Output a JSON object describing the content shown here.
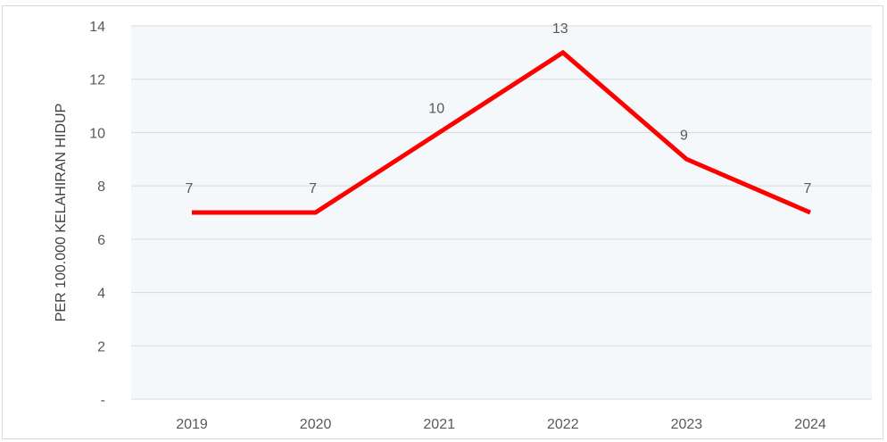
{
  "chart_data": {
    "type": "line",
    "title": "",
    "xlabel": "",
    "ylabel": "PER 100.000 KELAHIRAN HIDUP",
    "categories": [
      "2019",
      "2020",
      "2021",
      "2022",
      "2023",
      "2024"
    ],
    "series": [
      {
        "values": [
          7,
          7,
          10,
          13,
          9,
          7
        ],
        "color": "#ff0000"
      }
    ],
    "data_labels": [
      "7",
      "7",
      "10",
      "13",
      "9",
      "7"
    ],
    "y_ticks": [
      0,
      2,
      4,
      6,
      8,
      10,
      12,
      14
    ],
    "y_tick_labels": [
      "-",
      "2",
      "4",
      "6",
      "8",
      "10",
      "12",
      "14"
    ],
    "ylim": [
      0,
      14
    ],
    "grid": true,
    "plot_background": "#f4f8fb",
    "gridline_color": "#d9d9d9",
    "legend": "none"
  }
}
